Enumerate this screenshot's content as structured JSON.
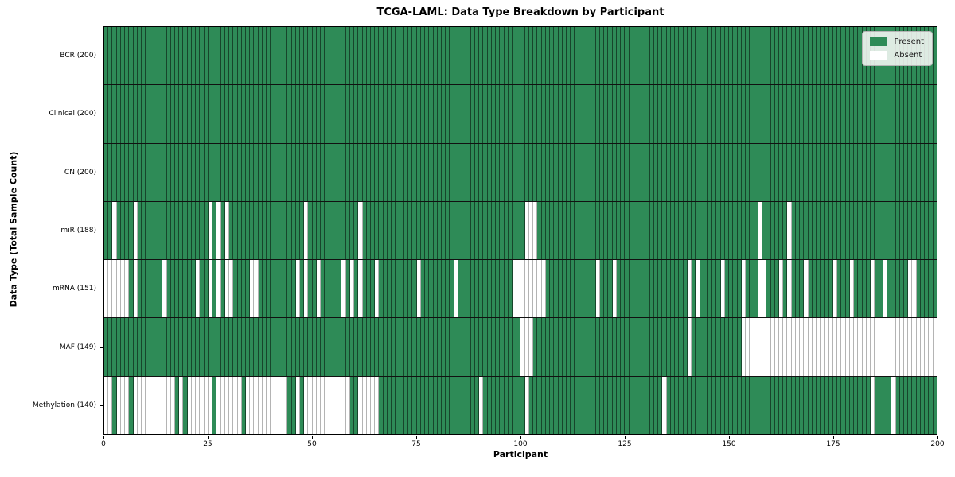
{
  "figure": {
    "title": "TCGA-LAML: Data Type Breakdown by Participant",
    "xlabel": "Participant",
    "ylabel": "Data Type (Total Sample Count)"
  },
  "legend": {
    "present_label": "Present",
    "absent_label": "Absent"
  },
  "colors": {
    "present": "#2e8b57",
    "absent": "#ffffff",
    "frame": "#000000",
    "legend_bg": "rgba(252,252,250,0.85)",
    "legend_border": "#b5b5b5"
  },
  "chart_data": {
    "type": "heatmap",
    "title": "TCGA-LAML: Data Type Breakdown by Participant",
    "xlabel": "Participant",
    "ylabel": "Data Type (Total Sample Count)",
    "legend_position": "upper right",
    "grid": "cell borders only",
    "x_range": [
      0,
      200
    ],
    "n_cells": 200,
    "x_ticks": [
      0,
      25,
      50,
      75,
      100,
      125,
      150,
      175,
      200
    ],
    "cell_encoding": "1 = Present (green), 0 = Absent (white); absent_cells lists 0-based participant indices that are white",
    "legend": [
      {
        "label": "Present",
        "color": "#2e8b57"
      },
      {
        "label": "Absent",
        "color": "#ffffff"
      }
    ],
    "rows": [
      {
        "label": "BCR (200)",
        "data_type": "BCR",
        "present_count": 200,
        "absent_cells": []
      },
      {
        "label": "Clinical (200)",
        "data_type": "Clinical",
        "present_count": 200,
        "absent_cells": []
      },
      {
        "label": "CN (200)",
        "data_type": "CN",
        "present_count": 200,
        "absent_cells": []
      },
      {
        "label": "miR (188)",
        "data_type": "miR",
        "present_count": 188,
        "absent_cells": [
          2,
          7,
          25,
          27,
          29,
          48,
          61,
          101,
          102,
          103,
          157,
          164
        ]
      },
      {
        "label": "mRNA (151)",
        "data_type": "mRNA",
        "present_count": 151,
        "absent_cells": [
          0,
          1,
          2,
          3,
          4,
          5,
          7,
          14,
          22,
          25,
          27,
          29,
          30,
          35,
          36,
          46,
          48,
          51,
          57,
          59,
          61,
          65,
          75,
          84,
          98,
          99,
          100,
          101,
          102,
          103,
          104,
          105,
          118,
          122,
          140,
          142,
          148,
          153,
          157,
          158,
          162,
          164,
          168,
          175,
          179,
          184,
          187,
          193,
          194
        ]
      },
      {
        "label": "MAF (149)",
        "data_type": "MAF",
        "present_count": 149,
        "absent_cells": [
          100,
          101,
          102,
          140,
          153,
          154,
          155,
          156,
          157,
          158,
          159,
          160,
          161,
          162,
          163,
          164,
          165,
          166,
          167,
          168,
          169,
          170,
          171,
          172,
          173,
          174,
          175,
          176,
          177,
          178,
          179,
          180,
          181,
          182,
          183,
          184,
          185,
          186,
          187,
          188,
          189,
          190,
          191,
          192,
          193,
          194,
          195,
          196,
          197,
          198,
          199
        ]
      },
      {
        "label": "Methylation (140)",
        "data_type": "Methylation",
        "present_count": 140,
        "absent_cells": [
          0,
          1,
          3,
          4,
          5,
          7,
          8,
          9,
          10,
          11,
          12,
          13,
          14,
          15,
          16,
          18,
          20,
          21,
          22,
          23,
          24,
          25,
          27,
          28,
          29,
          30,
          31,
          32,
          34,
          35,
          36,
          37,
          38,
          39,
          40,
          41,
          42,
          43,
          46,
          48,
          49,
          50,
          51,
          52,
          53,
          54,
          55,
          56,
          57,
          58,
          61,
          62,
          63,
          64,
          65,
          90,
          101,
          134,
          184,
          189
        ]
      }
    ]
  }
}
